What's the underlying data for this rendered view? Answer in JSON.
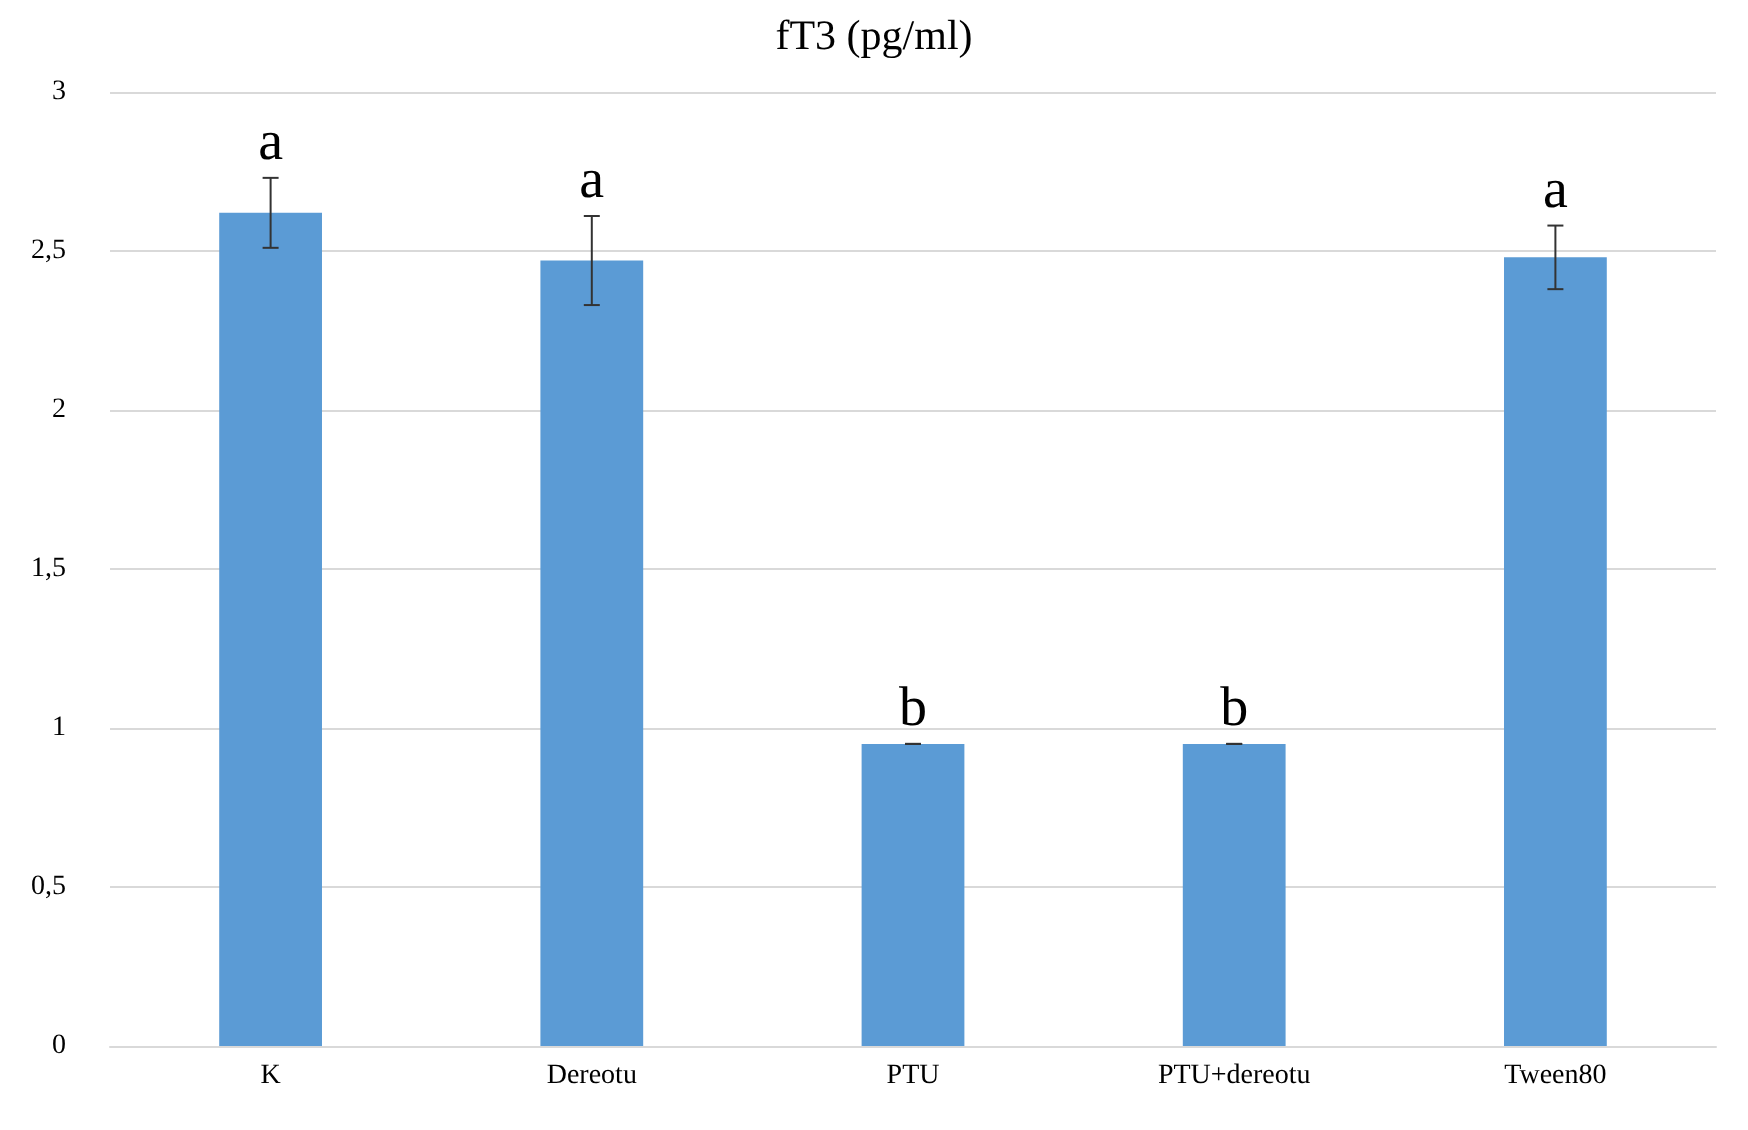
{
  "chart_data": {
    "type": "bar",
    "title": "fT3 (pg/ml)",
    "categories": [
      "K",
      "Dereotu",
      "PTU",
      "PTU+dereotu",
      "Tween80"
    ],
    "values": [
      2.62,
      2.47,
      0.95,
      0.95,
      2.48
    ],
    "errors": [
      0.11,
      0.14,
      0,
      0,
      0.1
    ],
    "color": "#5b9bd5",
    "ylim": [
      0,
      3
    ],
    "yticks": [
      0,
      {
        "value": 0.5,
        "label": "0,5"
      },
      1,
      {
        "value": 1.5,
        "label": "1,5"
      },
      2,
      {
        "value": 2.5,
        "label": "2,5"
      },
      3
    ],
    "grid": "y",
    "annotations": [
      {
        "text": "a",
        "x": "K",
        "y": 2.73
      },
      {
        "text": "a",
        "x": "Dereotu",
        "y": 2.61
      },
      {
        "text": "b",
        "x": "PTU",
        "y": 0.95
      },
      {
        "text": "b",
        "x": "PTU+dereotu",
        "y": 0.95
      },
      {
        "text": "a",
        "x": "Tween80",
        "y": 2.58
      }
    ]
  }
}
